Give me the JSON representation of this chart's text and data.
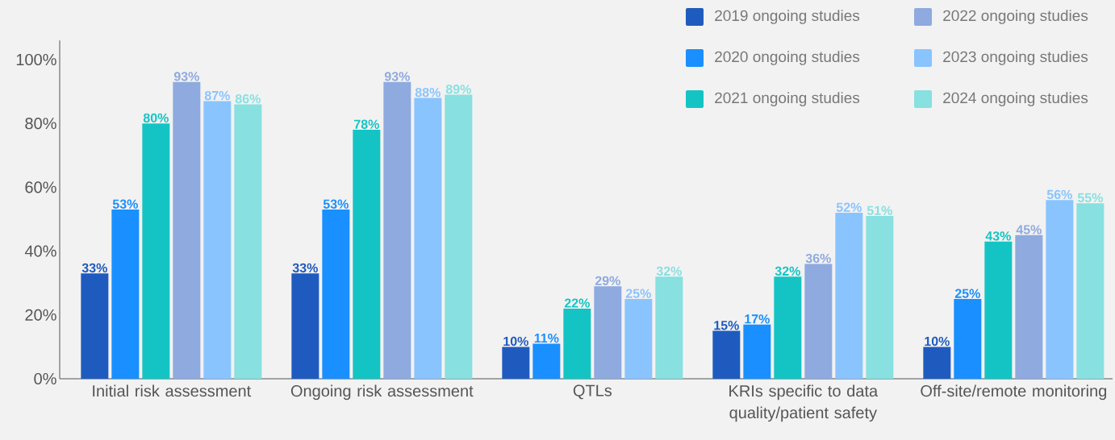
{
  "chart_data": {
    "type": "bar",
    "categories": [
      "Initial risk assessment",
      "Ongoing risk assessment",
      "QTLs",
      "KRIs specific to data quality/patient safety",
      "Off-site/remote monitoring"
    ],
    "series": [
      {
        "name": "2019 ongoing studies",
        "color": "#1f5bbf",
        "values": [
          33,
          33,
          10,
          15,
          10
        ],
        "value_labels": [
          "33%",
          "33%",
          "10%",
          "15%",
          "10%"
        ]
      },
      {
        "name": "2020 ongoing studies",
        "color": "#1a8fff",
        "values": [
          53,
          53,
          11,
          17,
          25
        ],
        "value_labels": [
          "53%",
          "53%",
          "11%",
          "17%",
          "25%"
        ]
      },
      {
        "name": "2021 ongoing studies",
        "color": "#14c4c4",
        "values": [
          80,
          78,
          22,
          32,
          43
        ],
        "value_labels": [
          "80%",
          "78%",
          "22%",
          "32%",
          "43%"
        ]
      },
      {
        "name": "2022 ongoing studies",
        "color": "#8eaadf",
        "values": [
          93,
          93,
          29,
          36,
          45
        ],
        "value_labels": [
          "93%",
          "93%",
          "29%",
          "36%",
          "45%"
        ]
      },
      {
        "name": "2023 ongoing studies",
        "color": "#8ac4ff",
        "values": [
          87,
          88,
          25,
          52,
          56
        ],
        "value_labels": [
          "87%",
          "88%",
          "25%",
          "52%",
          "56%"
        ]
      },
      {
        "name": "2024 ongoing studies",
        "color": "#88e0e0",
        "values": [
          86,
          89,
          32,
          51,
          55
        ],
        "value_labels": [
          "86%",
          "89%",
          "32%",
          "51%",
          "55%"
        ]
      }
    ],
    "ylim": [
      0,
      106
    ],
    "yticks": [
      {
        "value": 0,
        "label": "0%"
      },
      {
        "value": 20,
        "label": "20%"
      },
      {
        "value": 40,
        "label": "40%"
      },
      {
        "value": 60,
        "label": "60%"
      },
      {
        "value": 80,
        "label": "80%"
      },
      {
        "value": 100,
        "label": "100%"
      }
    ],
    "grid": false,
    "legend": "top right"
  }
}
